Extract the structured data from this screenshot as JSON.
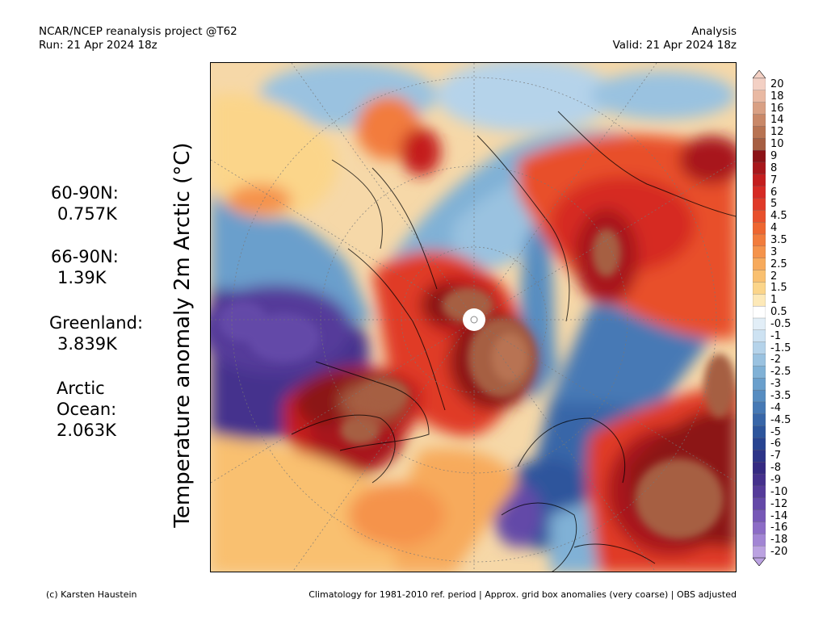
{
  "header": {
    "title_line1": "NCAR/NCEP reanalysis project @T62",
    "title_line2": "Run: 21 Apr 2024 18z",
    "right_line1": "Analysis",
    "right_line2": "Valid: 21 Apr 2024 18z"
  },
  "ylabel": "Temperature anomaly 2m Arctic (°C)",
  "stats": [
    {
      "label": "60-90N:",
      "value": "0.757K"
    },
    {
      "label": "66-90N:",
      "value": "1.39K"
    },
    {
      "label": "Greenland:",
      "value": "3.839K"
    },
    {
      "label": "Arctic",
      "label2": "Ocean:",
      "value": "2.063K"
    }
  ],
  "colorbar": {
    "labels": [
      "20",
      "18",
      "16",
      "14",
      "12",
      "10",
      "9",
      "8",
      "7",
      "6",
      "5",
      "4.5",
      "4",
      "3.5",
      "3",
      "2.5",
      "2",
      "1.5",
      "1",
      "0.5",
      "-0.5",
      "-1",
      "-1.5",
      "-2",
      "-2.5",
      "-3",
      "-3.5",
      "-4",
      "-4.5",
      "-5",
      "-6",
      "-7",
      "-8",
      "-9",
      "-10",
      "-12",
      "-14",
      "-16",
      "-18",
      "-20"
    ],
    "colors": [
      "#f3d0c4",
      "#e9b9a3",
      "#d9a084",
      "#c98868",
      "#b87352",
      "#a65e42",
      "#8c1216",
      "#a8171b",
      "#c41e1e",
      "#d62a24",
      "#e03a28",
      "#e8502c",
      "#ee6630",
      "#f27c3c",
      "#f5934b",
      "#f7aa5c",
      "#f9c070",
      "#fbd58a",
      "#fde9b8",
      "#ffffff",
      "#e2eef7",
      "#cde2f2",
      "#b5d3ea",
      "#9ac2e0",
      "#80b1d6",
      "#6a9fcc",
      "#578dc1",
      "#4679b5",
      "#3866a8",
      "#2d559c",
      "#284491",
      "#2d3488",
      "#352a82",
      "#45318d",
      "#553b9a",
      "#6449a8",
      "#7758b7",
      "#8c6cc6",
      "#a285d4",
      "#bba2e1"
    ]
  },
  "footer": {
    "left": "(c) Karsten Haustein",
    "right": "Climatology for 1981-2010 ref. period | Approx. grid box anomalies (very coarse) | OBS adjusted"
  }
}
